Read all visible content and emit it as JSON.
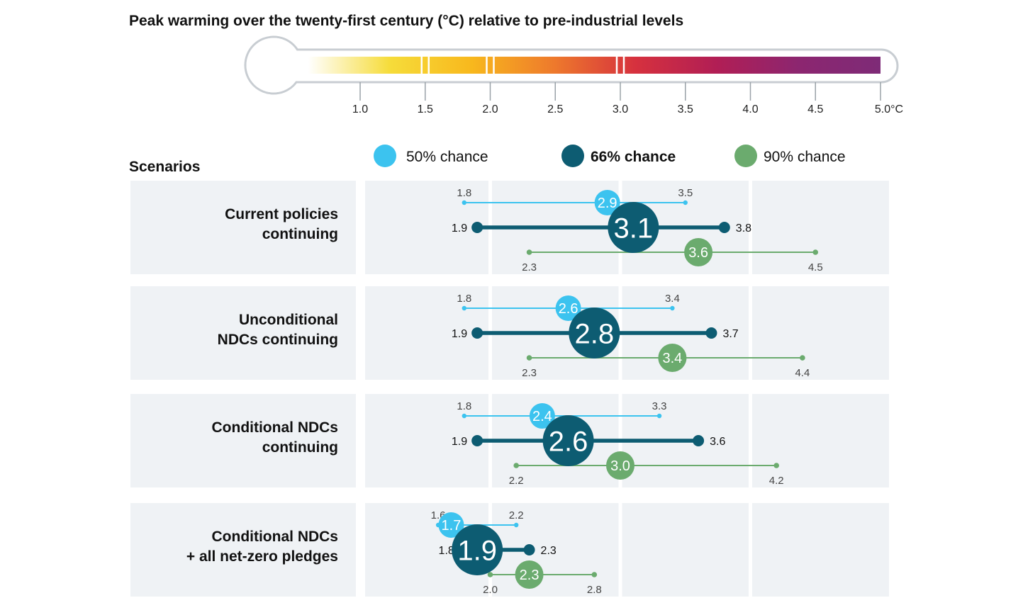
{
  "chart_data": {
    "type": "range-dot",
    "title": "Peak warming over the twenty-first century (°C) relative to pre-industrial levels",
    "scale": {
      "min": 1.0,
      "max": 5.0,
      "bar_start": 0.6,
      "ticks": [
        1.0,
        1.5,
        2.0,
        2.5,
        3.0,
        3.5,
        4.0,
        4.5,
        5.0
      ],
      "tick_labels": [
        "1.0",
        "1.5",
        "2.0",
        "2.5",
        "3.0",
        "3.5",
        "4.0",
        "4.5",
        "5.0°C"
      ],
      "markers": [
        1.5,
        2.0,
        3.0
      ],
      "gradient": [
        "#ffffff",
        "#f6dc3a",
        "#f8b81d",
        "#ee7a2c",
        "#d6313e",
        "#b11e55",
        "#8c2670",
        "#7e2b77"
      ]
    },
    "scenarios_title": "Scenarios",
    "grid_lines": [
      2.0,
      3.0,
      4.0
    ],
    "legend": [
      {
        "key": "p50",
        "label": "50% chance",
        "color": "#3cc3ef",
        "bold": false
      },
      {
        "key": "p66",
        "label": "66% chance",
        "color": "#0d5c72",
        "bold": true
      },
      {
        "key": "p90",
        "label": "90% chance",
        "color": "#6bab6e",
        "bold": false
      }
    ],
    "scenarios": [
      {
        "name": [
          "Current policies",
          "continuing"
        ],
        "p50": {
          "low": 1.8,
          "central": 2.9,
          "high": 3.5
        },
        "p66": {
          "low": 1.9,
          "central": 3.1,
          "high": 3.8
        },
        "p90": {
          "low": 2.3,
          "central": 3.6,
          "high": 4.5
        }
      },
      {
        "name": [
          "Unconditional",
          "NDCs continuing"
        ],
        "p50": {
          "low": 1.8,
          "central": 2.6,
          "high": 3.4
        },
        "p66": {
          "low": 1.9,
          "central": 2.8,
          "high": 3.7
        },
        "p90": {
          "low": 2.3,
          "central": 3.4,
          "high": 4.4
        }
      },
      {
        "name": [
          "Conditional NDCs",
          "continuing"
        ],
        "p50": {
          "low": 1.8,
          "central": 2.4,
          "high": 3.3
        },
        "p66": {
          "low": 1.9,
          "central": 2.6,
          "high": 3.6
        },
        "p90": {
          "low": 2.2,
          "central": 3.0,
          "high": 4.2
        }
      },
      {
        "name": [
          "Conditional NDCs",
          "+ all net-zero pledges"
        ],
        "p50": {
          "low": 1.6,
          "central": 1.7,
          "high": 2.2
        },
        "p66": {
          "low": 1.8,
          "central": 1.9,
          "high": 2.3
        },
        "p90": {
          "low": 2.0,
          "central": 2.3,
          "high": 2.8
        }
      }
    ]
  }
}
